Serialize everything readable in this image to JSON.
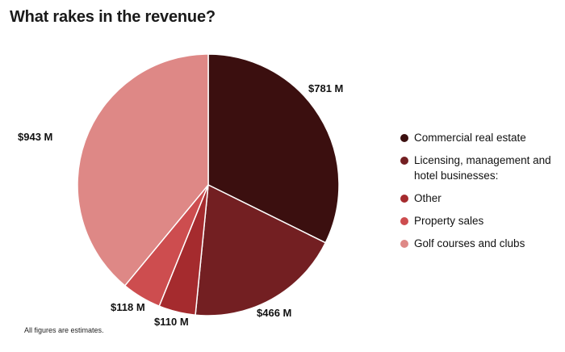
{
  "title": "What rakes in the revenue?",
  "footnote": "All figures are estimates.",
  "chart_data": {
    "type": "pie",
    "title": "What rakes in the revenue?",
    "start_angle_deg": 0,
    "direction": "clockwise",
    "unit": "$M",
    "slices": [
      {
        "name": "Commercial real estate",
        "value": 781,
        "label": "$781 M",
        "color": "#3b0f0f"
      },
      {
        "name": "Licensing, management and hotel businesses:",
        "value": 466,
        "label": "$466 M",
        "color": "#731f22"
      },
      {
        "name": "Other",
        "value": 110,
        "label": "$110 M",
        "color": "#a52b2e"
      },
      {
        "name": "Property sales",
        "value": 118,
        "label": "$118 M",
        "color": "#cd4d4f"
      },
      {
        "name": "Golf courses and clubs",
        "value": 943,
        "label": "$943 M",
        "color": "#de8886"
      }
    ],
    "legend_position": "right"
  }
}
